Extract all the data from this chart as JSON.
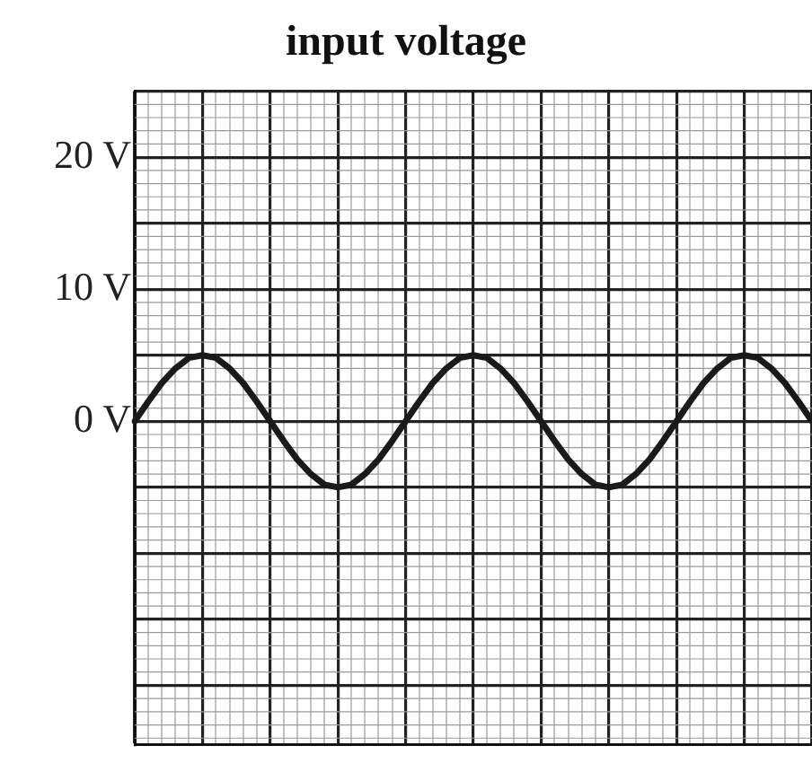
{
  "chart_data": {
    "type": "line",
    "title": "input voltage",
    "categories": [
      null,
      null,
      null,
      null,
      null,
      null,
      null,
      null,
      null,
      null,
      null,
      null,
      null,
      null,
      null,
      null,
      null,
      null,
      null,
      null,
      null,
      null,
      null,
      null,
      null,
      null,
      null,
      null,
      null,
      null,
      null,
      null,
      null,
      null,
      null,
      null,
      null,
      null,
      null,
      null,
      null,
      null,
      null,
      null,
      null,
      null,
      null,
      null,
      null,
      null,
      null
    ],
    "series": [
      {
        "color": "#1a1a1a",
        "values": [
          0,
          1.5,
          2.9,
          4.0,
          4.8,
          5,
          4.8,
          4.0,
          2.9,
          1.5,
          0,
          -1.5,
          -2.9,
          -4.0,
          -4.8,
          -5,
          -4.8,
          -4.0,
          -2.9,
          -1.5,
          0,
          1.5,
          2.9,
          4.0,
          4.8,
          5,
          4.8,
          4.0,
          2.9,
          1.5,
          0,
          -1.5,
          -2.9,
          -4.0,
          -4.8,
          -5,
          -4.8,
          -4.0,
          -2.9,
          -1.5,
          0,
          1.5,
          2.9,
          4.0,
          4.8,
          5,
          4.8,
          4.0,
          2.9,
          1.5,
          0
        ]
      }
    ],
    "ylim": [
      -24.5,
      25
    ],
    "yticks": [
      {
        "value": -20,
        "label": null
      },
      {
        "value": -15,
        "label": null
      },
      {
        "value": -10,
        "label": null
      },
      {
        "value": -5,
        "label": null
      },
      {
        "value": 0,
        "label": "0 V"
      },
      {
        "value": 5,
        "label": null
      },
      {
        "value": 10,
        "label": "10 V"
      },
      {
        "value": 15,
        "label": null
      },
      {
        "value": 20,
        "label": "20 V"
      },
      {
        "value": 25,
        "label": null
      }
    ],
    "grid": true,
    "legend": false,
    "marker": "none",
    "line_style": "solid",
    "tick_labels": "y"
  }
}
